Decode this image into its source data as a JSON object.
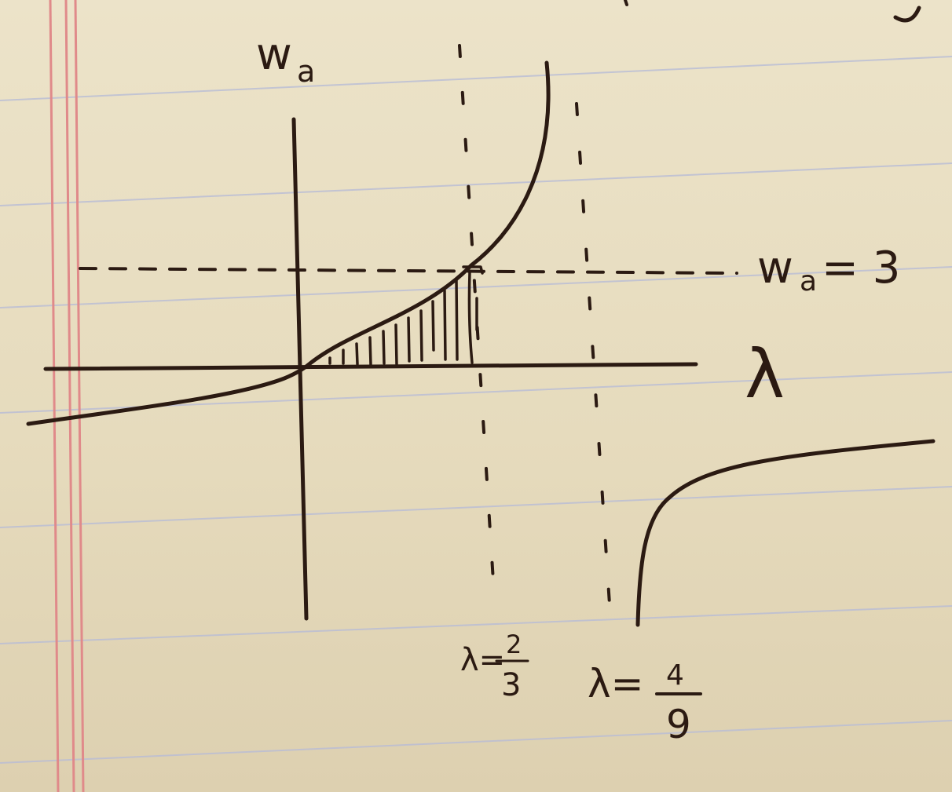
{
  "diagram": {
    "y_axis_label": "w",
    "y_axis_subscript": "a",
    "x_axis_label": "λ",
    "horizontal_line_label": "w",
    "horizontal_line_subscript": "a",
    "horizontal_line_value": "= 3",
    "asymptote_1": {
      "prefix": "λ=",
      "numerator": "2",
      "denominator": "3"
    },
    "asymptote_2": {
      "prefix": "λ=",
      "numerator": "4",
      "denominator": "9"
    },
    "shaded_region": "hatched area under curve between λ = 0 and λ = 2/3"
  },
  "colors": {
    "paper": "#e7dcbf",
    "rule_line": "#b9bdd6",
    "margin_line": "#e08a8a",
    "ink": "#2b1a12"
  }
}
